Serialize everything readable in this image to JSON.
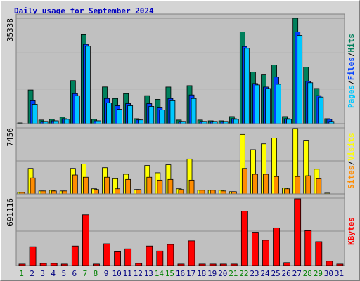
{
  "chart_data": [
    {
      "type": "bar",
      "title": "Daily usage for September 2024",
      "legend_separator": "/",
      "ylim": [
        0,
        35338
      ],
      "yticks": [
        35338
      ],
      "grid_divisions": 3,
      "series": [
        {
          "name": "Hits",
          "color": "#00805c",
          "values": [
            700,
            11600,
            1660,
            1900,
            2600,
            14700,
            29900,
            1900,
            12600,
            8780,
            10400,
            2100,
            9720,
            8500,
            12570,
            1660,
            13040,
            1660,
            1400,
            1400,
            2800,
            30800,
            17550,
            16600,
            19900,
            2800,
            35338,
            19200,
            12100,
            2100,
            240
          ]
        },
        {
          "name": "Files",
          "color": "#0040ff",
          "values": [
            500,
            8060,
            1200,
            1400,
            2100,
            10400,
            26700,
            1400,
            8780,
            6400,
            7100,
            1700,
            7100,
            5700,
            8780,
            1200,
            9950,
            1200,
            1100,
            1100,
            2100,
            26000,
            13740,
            12570,
            15880,
            2100,
            30800,
            14460,
            9720,
            1900,
            240
          ]
        },
        {
          "name": "Pages",
          "color": "#00c8ff",
          "values": [
            500,
            6880,
            1200,
            1400,
            1900,
            9700,
            26100,
            1400,
            7350,
            5220,
            6400,
            1700,
            6170,
            5000,
            8060,
            1200,
            8780,
            1200,
            1200,
            1200,
            1900,
            25400,
            13280,
            12100,
            13500,
            1900,
            29650,
            14000,
            9250,
            1200,
            0
          ]
        }
      ]
    },
    {
      "type": "bar",
      "legend_separator": "/",
      "ylim": [
        0,
        7456
      ],
      "yticks": [
        7456
      ],
      "grid_divisions": 2,
      "series": [
        {
          "name": "Visits",
          "color": "#ffff00",
          "values": [
            320,
            2970,
            480,
            560,
            480,
            2970,
            3450,
            720,
            3050,
            1840,
            2330,
            640,
            3290,
            2490,
            3370,
            720,
            4010,
            560,
            560,
            560,
            400,
            6730,
            5050,
            5690,
            6330,
            800,
            7380,
            6090,
            2890,
            240,
            160
          ]
        },
        {
          "name": "Sites",
          "color": "#ff8c00",
          "values": [
            320,
            1920,
            480,
            480,
            480,
            2250,
            2000,
            640,
            2000,
            720,
            1760,
            640,
            2000,
            1680,
            1760,
            640,
            1680,
            560,
            560,
            480,
            400,
            2970,
            2330,
            2330,
            2080,
            720,
            2080,
            2170,
            1840,
            160,
            160
          ]
        }
      ]
    },
    {
      "type": "bar",
      "ylim": [
        0,
        691116
      ],
      "yticks": [
        691116
      ],
      "grid_divisions": 2,
      "categories": [
        "1",
        "2",
        "3",
        "4",
        "5",
        "6",
        "7",
        "8",
        "9",
        "10",
        "11",
        "12",
        "13",
        "14",
        "15",
        "16",
        "17",
        "18",
        "19",
        "20",
        "21",
        "22",
        "23",
        "24",
        "25",
        "26",
        "27",
        "28",
        "29",
        "30",
        "31"
      ],
      "weekend": [
        true,
        false,
        false,
        false,
        false,
        false,
        true,
        true,
        false,
        false,
        false,
        false,
        false,
        true,
        true,
        false,
        false,
        false,
        false,
        false,
        true,
        true,
        false,
        false,
        false,
        false,
        false,
        true,
        true,
        false,
        false
      ],
      "weekday_color": "#000080",
      "weekend_color": "#008000",
      "series": [
        {
          "name": "KBytes",
          "color": "#ff0000",
          "values": [
            15000,
            193000,
            22000,
            22000,
            15000,
            200000,
            520000,
            15000,
            223000,
            141000,
            171000,
            22000,
            200000,
            149000,
            216000,
            15000,
            253000,
            15000,
            15000,
            15000,
            15000,
            557000,
            342000,
            260000,
            386000,
            30000,
            684000,
            357000,
            245000,
            45000,
            15000
          ]
        }
      ]
    }
  ]
}
